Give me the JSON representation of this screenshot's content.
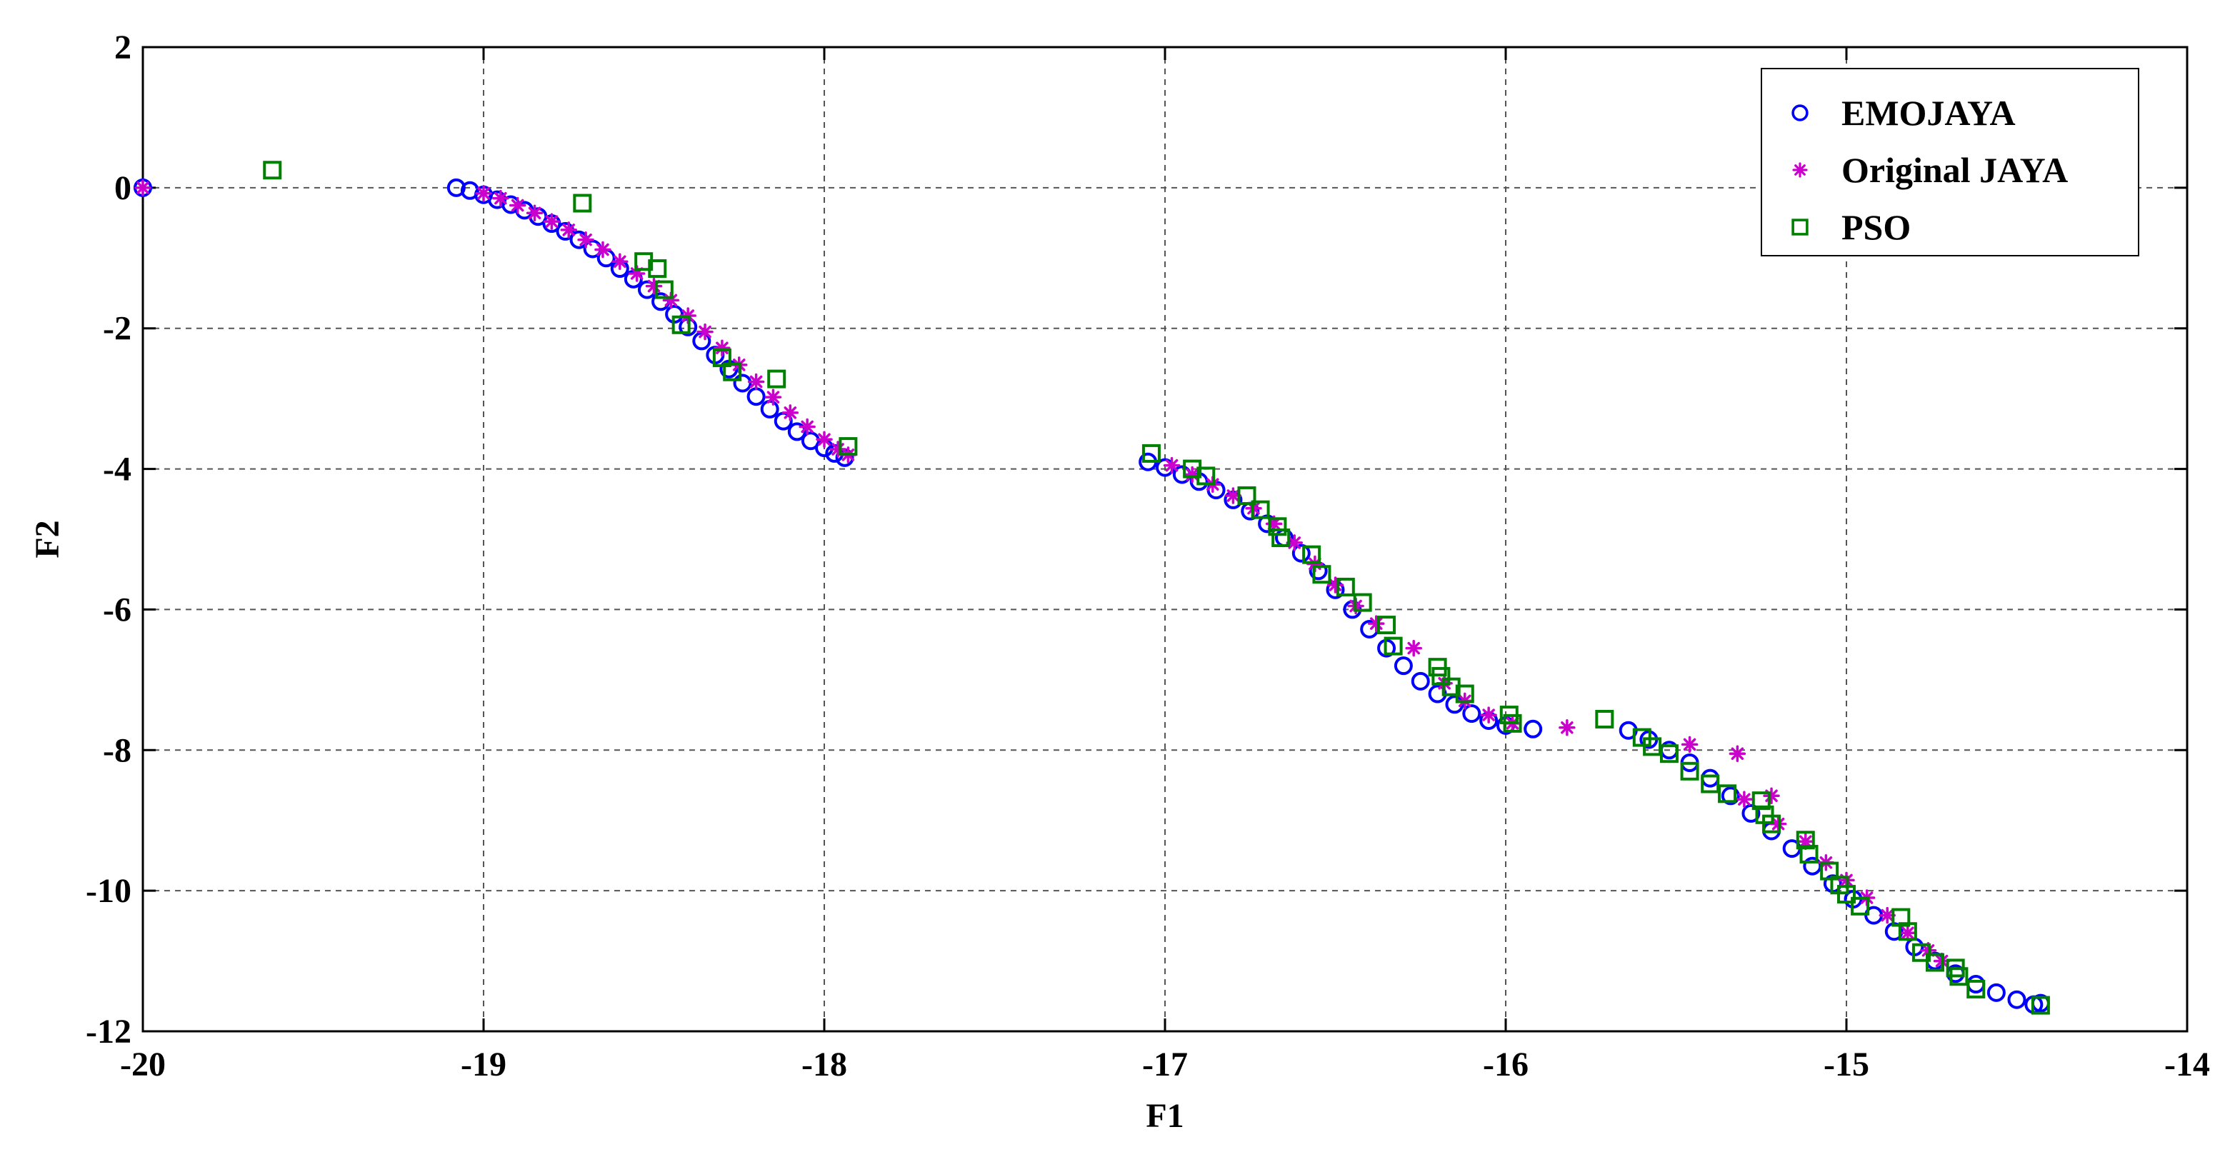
{
  "chart_data": {
    "type": "scatter",
    "title": "",
    "xlabel": "F1",
    "ylabel": "F2",
    "xlim": [
      -20,
      -14
    ],
    "ylim": [
      -12,
      2
    ],
    "x_ticks": [
      -20,
      -19,
      -18,
      -17,
      -16,
      -15,
      -14
    ],
    "y_ticks": [
      2,
      0,
      -2,
      -4,
      -6,
      -8,
      -10,
      -12
    ],
    "x_tick_labels": [
      "-20",
      "-19",
      "-18",
      "-17",
      "-16",
      "-15",
      "-14"
    ],
    "y_tick_labels": [
      "2",
      "0",
      "-2",
      "-4",
      "-6",
      "-8",
      "-10",
      "-12"
    ],
    "grid": true,
    "legend_position": "top-right",
    "series": [
      {
        "name": "EMOJAYA",
        "marker": "circle",
        "color": "#0000ff",
        "points": [
          [
            -20.0,
            0.0
          ],
          [
            -19.08,
            0.0
          ],
          [
            -19.04,
            -0.04
          ],
          [
            -19.0,
            -0.1
          ],
          [
            -18.96,
            -0.17
          ],
          [
            -18.92,
            -0.24
          ],
          [
            -18.88,
            -0.32
          ],
          [
            -18.84,
            -0.41
          ],
          [
            -18.8,
            -0.51
          ],
          [
            -18.76,
            -0.62
          ],
          [
            -18.72,
            -0.74
          ],
          [
            -18.68,
            -0.87
          ],
          [
            -18.64,
            -1.0
          ],
          [
            -18.6,
            -1.15
          ],
          [
            -18.56,
            -1.3
          ],
          [
            -18.52,
            -1.45
          ],
          [
            -18.48,
            -1.62
          ],
          [
            -18.44,
            -1.8
          ],
          [
            -18.4,
            -1.98
          ],
          [
            -18.36,
            -2.18
          ],
          [
            -18.32,
            -2.38
          ],
          [
            -18.28,
            -2.58
          ],
          [
            -18.24,
            -2.78
          ],
          [
            -18.2,
            -2.97
          ],
          [
            -18.16,
            -3.15
          ],
          [
            -18.12,
            -3.32
          ],
          [
            -18.08,
            -3.47
          ],
          [
            -18.04,
            -3.6
          ],
          [
            -18.0,
            -3.7
          ],
          [
            -17.97,
            -3.78
          ],
          [
            -17.94,
            -3.84
          ],
          [
            -17.05,
            -3.9
          ],
          [
            -17.0,
            -3.98
          ],
          [
            -16.95,
            -4.08
          ],
          [
            -16.9,
            -4.18
          ],
          [
            -16.85,
            -4.3
          ],
          [
            -16.8,
            -4.44
          ],
          [
            -16.75,
            -4.6
          ],
          [
            -16.7,
            -4.78
          ],
          [
            -16.65,
            -4.98
          ],
          [
            -16.6,
            -5.2
          ],
          [
            -16.55,
            -5.45
          ],
          [
            -16.5,
            -5.72
          ],
          [
            -16.45,
            -6.0
          ],
          [
            -16.4,
            -6.28
          ],
          [
            -16.35,
            -6.55
          ],
          [
            -16.3,
            -6.8
          ],
          [
            -16.25,
            -7.02
          ],
          [
            -16.2,
            -7.2
          ],
          [
            -16.15,
            -7.35
          ],
          [
            -16.1,
            -7.48
          ],
          [
            -16.05,
            -7.58
          ],
          [
            -16.0,
            -7.65
          ],
          [
            -15.92,
            -7.7
          ],
          [
            -15.64,
            -7.72
          ],
          [
            -15.58,
            -7.85
          ],
          [
            -15.52,
            -8.0
          ],
          [
            -15.46,
            -8.18
          ],
          [
            -15.4,
            -8.4
          ],
          [
            -15.34,
            -8.65
          ],
          [
            -15.28,
            -8.9
          ],
          [
            -15.22,
            -9.15
          ],
          [
            -15.16,
            -9.4
          ],
          [
            -15.1,
            -9.65
          ],
          [
            -15.04,
            -9.9
          ],
          [
            -14.98,
            -10.12
          ],
          [
            -14.92,
            -10.35
          ],
          [
            -14.86,
            -10.58
          ],
          [
            -14.8,
            -10.8
          ],
          [
            -14.74,
            -11.0
          ],
          [
            -14.68,
            -11.18
          ],
          [
            -14.62,
            -11.33
          ],
          [
            -14.56,
            -11.45
          ],
          [
            -14.5,
            -11.55
          ],
          [
            -14.45,
            -11.62
          ],
          [
            -14.43,
            -11.6
          ]
        ]
      },
      {
        "name": "Original JAYA",
        "marker": "star",
        "color": "#cc00cc",
        "points": [
          [
            -20.0,
            0.0
          ],
          [
            -19.0,
            -0.08
          ],
          [
            -18.95,
            -0.15
          ],
          [
            -18.9,
            -0.25
          ],
          [
            -18.85,
            -0.36
          ],
          [
            -18.8,
            -0.48
          ],
          [
            -18.75,
            -0.6
          ],
          [
            -18.7,
            -0.74
          ],
          [
            -18.65,
            -0.88
          ],
          [
            -18.6,
            -1.05
          ],
          [
            -18.55,
            -1.22
          ],
          [
            -18.5,
            -1.4
          ],
          [
            -18.45,
            -1.6
          ],
          [
            -18.4,
            -1.82
          ],
          [
            -18.35,
            -2.05
          ],
          [
            -18.3,
            -2.28
          ],
          [
            -18.25,
            -2.52
          ],
          [
            -18.2,
            -2.76
          ],
          [
            -18.15,
            -2.98
          ],
          [
            -18.1,
            -3.2
          ],
          [
            -18.05,
            -3.4
          ],
          [
            -18.0,
            -3.58
          ],
          [
            -17.96,
            -3.72
          ],
          [
            -17.93,
            -3.8
          ],
          [
            -16.98,
            -3.95
          ],
          [
            -16.92,
            -4.08
          ],
          [
            -16.86,
            -4.22
          ],
          [
            -16.8,
            -4.38
          ],
          [
            -16.74,
            -4.56
          ],
          [
            -16.68,
            -4.78
          ],
          [
            -16.62,
            -5.05
          ],
          [
            -16.56,
            -5.35
          ],
          [
            -16.5,
            -5.65
          ],
          [
            -16.44,
            -5.95
          ],
          [
            -16.38,
            -6.2
          ],
          [
            -16.27,
            -6.55
          ],
          [
            -16.18,
            -7.05
          ],
          [
            -16.12,
            -7.3
          ],
          [
            -16.05,
            -7.5
          ],
          [
            -15.98,
            -7.62
          ],
          [
            -15.82,
            -7.68
          ],
          [
            -15.46,
            -7.92
          ],
          [
            -15.32,
            -8.05
          ],
          [
            -15.22,
            -8.65
          ],
          [
            -15.3,
            -8.7
          ],
          [
            -15.2,
            -9.05
          ],
          [
            -15.12,
            -9.3
          ],
          [
            -15.06,
            -9.6
          ],
          [
            -15.0,
            -9.85
          ],
          [
            -14.94,
            -10.1
          ],
          [
            -14.88,
            -10.35
          ],
          [
            -14.82,
            -10.6
          ],
          [
            -14.76,
            -10.85
          ],
          [
            -14.72,
            -11.0
          ]
        ]
      },
      {
        "name": "PSO",
        "marker": "square",
        "color": "#008000",
        "points": [
          [
            -19.62,
            0.25
          ],
          [
            -18.71,
            -0.22
          ],
          [
            -18.53,
            -1.05
          ],
          [
            -18.49,
            -1.15
          ],
          [
            -18.47,
            -1.45
          ],
          [
            -18.42,
            -1.95
          ],
          [
            -18.3,
            -2.42
          ],
          [
            -18.27,
            -2.62
          ],
          [
            -18.14,
            -2.72
          ],
          [
            -17.93,
            -3.68
          ],
          [
            -17.04,
            -3.78
          ],
          [
            -16.92,
            -4.0
          ],
          [
            -16.88,
            -4.1
          ],
          [
            -16.76,
            -4.38
          ],
          [
            -16.72,
            -4.58
          ],
          [
            -16.67,
            -4.82
          ],
          [
            -16.66,
            -4.98
          ],
          [
            -16.57,
            -5.22
          ],
          [
            -16.54,
            -5.5
          ],
          [
            -16.47,
            -5.68
          ],
          [
            -16.42,
            -5.9
          ],
          [
            -16.35,
            -6.22
          ],
          [
            -16.33,
            -6.52
          ],
          [
            -16.2,
            -6.82
          ],
          [
            -16.19,
            -6.95
          ],
          [
            -16.16,
            -7.1
          ],
          [
            -16.12,
            -7.2
          ],
          [
            -15.99,
            -7.5
          ],
          [
            -15.98,
            -7.62
          ],
          [
            -15.71,
            -7.56
          ],
          [
            -15.6,
            -7.82
          ],
          [
            -15.57,
            -7.95
          ],
          [
            -15.52,
            -8.05
          ],
          [
            -15.46,
            -8.3
          ],
          [
            -15.4,
            -8.48
          ],
          [
            -15.35,
            -8.62
          ],
          [
            -15.25,
            -8.72
          ],
          [
            -15.24,
            -8.92
          ],
          [
            -15.22,
            -9.05
          ],
          [
            -15.12,
            -9.28
          ],
          [
            -15.11,
            -9.48
          ],
          [
            -15.05,
            -9.72
          ],
          [
            -15.02,
            -9.92
          ],
          [
            -15.0,
            -10.05
          ],
          [
            -14.96,
            -10.22
          ],
          [
            -14.84,
            -10.38
          ],
          [
            -14.82,
            -10.58
          ],
          [
            -14.78,
            -10.88
          ],
          [
            -14.74,
            -11.02
          ],
          [
            -14.68,
            -11.1
          ],
          [
            -14.67,
            -11.22
          ],
          [
            -14.62,
            -11.4
          ],
          [
            -14.43,
            -11.63
          ]
        ]
      }
    ]
  }
}
